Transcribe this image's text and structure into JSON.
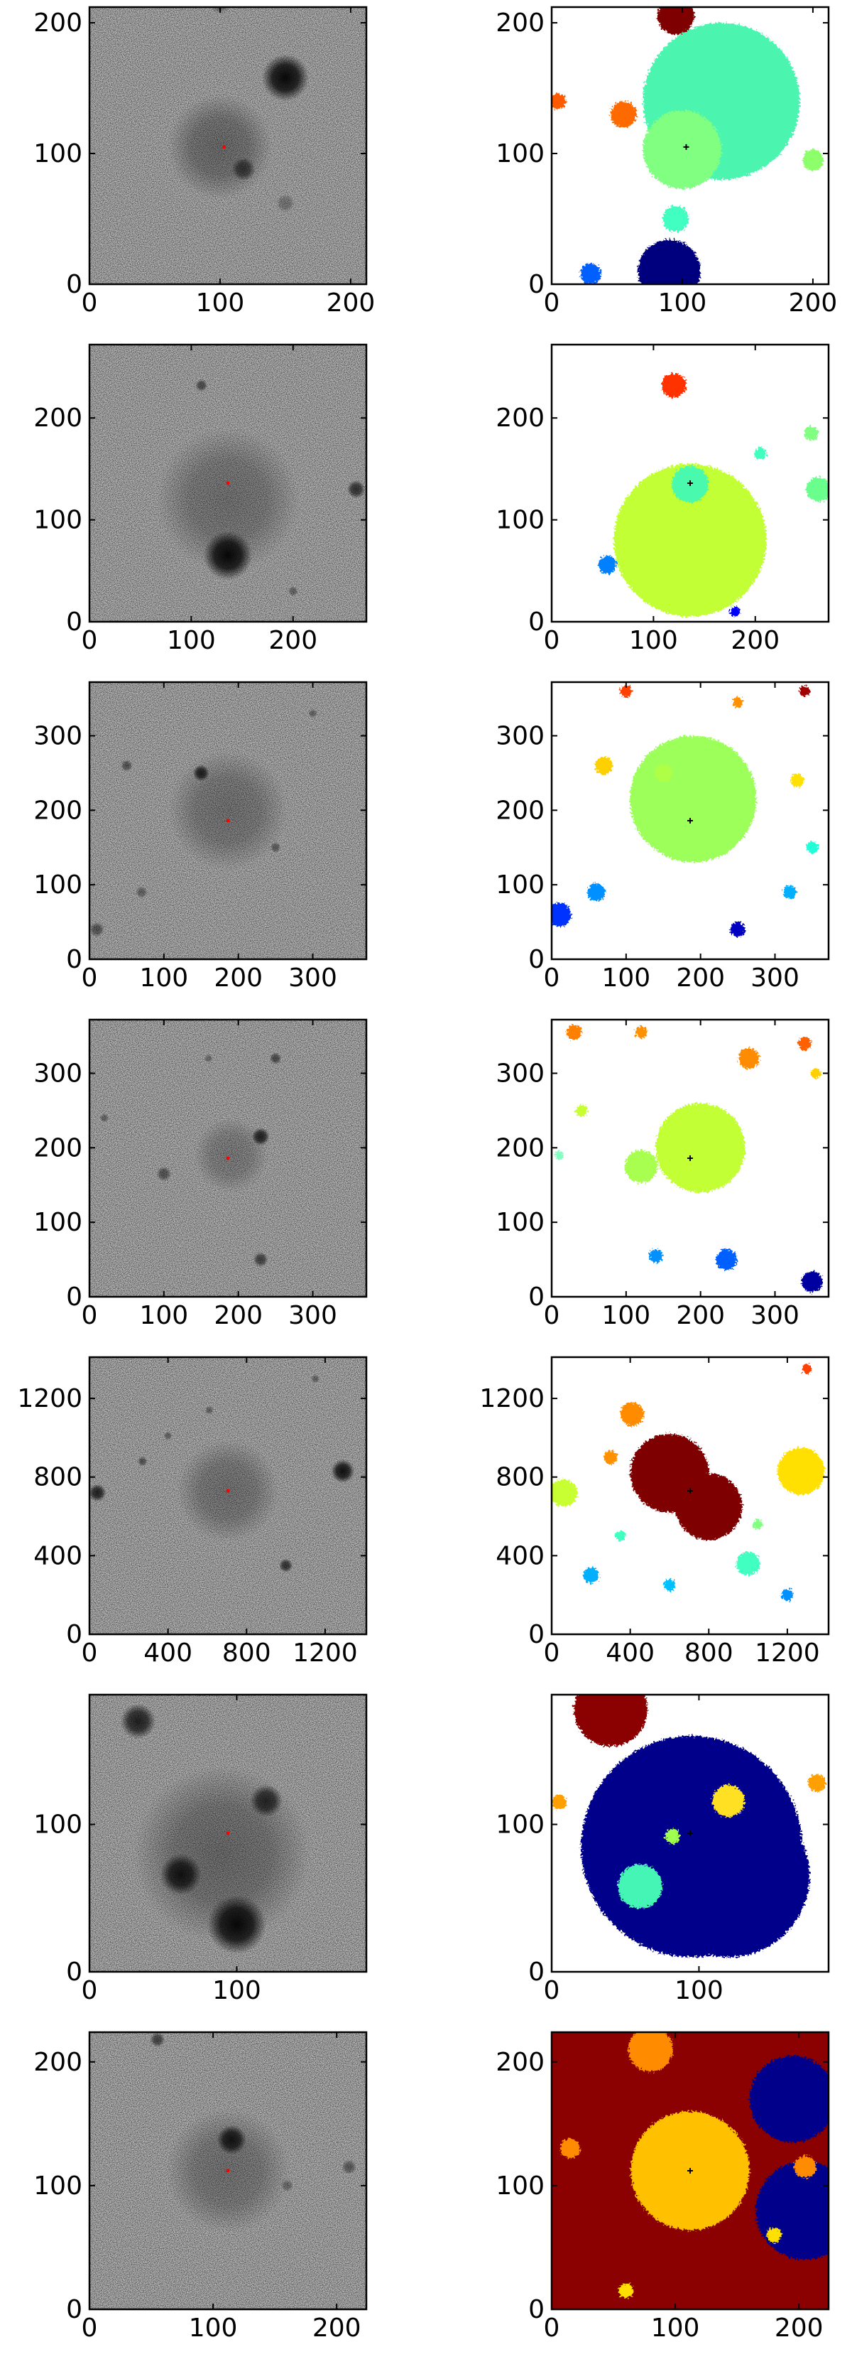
{
  "chart_data": [
    {
      "type": "image-grid-row",
      "xlim": [
        0,
        212
      ],
      "ylim": [
        0,
        212
      ],
      "xticks": [
        0,
        100,
        200
      ],
      "yticks": [
        0,
        100,
        200
      ],
      "center": [
        103,
        105
      ],
      "image": {
        "blobs": [
          {
            "x": 150,
            "y": 158,
            "r": 18,
            "strength": 0.95
          },
          {
            "x": 118,
            "y": 88,
            "r": 9,
            "strength": 0.6
          },
          {
            "x": 100,
            "y": 105,
            "r": 40,
            "strength": 0.35
          },
          {
            "x": 100,
            "y": 215,
            "r": 8,
            "strength": 0.4
          },
          {
            "x": 150,
            "y": 62,
            "r": 7,
            "strength": 0.3
          }
        ]
      },
      "segmentation": {
        "background": "#ffffff",
        "blobs": [
          {
            "x": 130,
            "y": 140,
            "r": 60,
            "color": "#4cf5b0"
          },
          {
            "x": 100,
            "y": 103,
            "r": 30,
            "color": "#80ff80"
          },
          {
            "x": 90,
            "y": 10,
            "r": 24,
            "color": "#00007f"
          },
          {
            "x": 95,
            "y": 205,
            "r": 14,
            "color": "#7f0000"
          },
          {
            "x": 55,
            "y": 130,
            "r": 10,
            "color": "#ff6a00"
          },
          {
            "x": 200,
            "y": 95,
            "r": 8,
            "color": "#8cff6b"
          },
          {
            "x": 5,
            "y": 140,
            "r": 6,
            "color": "#ff5a00"
          },
          {
            "x": 30,
            "y": 8,
            "r": 8,
            "color": "#0060ff"
          },
          {
            "x": 95,
            "y": 50,
            "r": 10,
            "color": "#40ffc0"
          }
        ]
      }
    },
    {
      "type": "image-grid-row",
      "xlim": [
        0,
        272
      ],
      "ylim": [
        0,
        272
      ],
      "xticks": [
        0,
        100,
        200
      ],
      "yticks": [
        0,
        100,
        200
      ],
      "center": [
        136,
        136
      ],
      "image": {
        "blobs": [
          {
            "x": 136,
            "y": 65,
            "r": 24,
            "strength": 0.95
          },
          {
            "x": 136,
            "y": 120,
            "r": 70,
            "strength": 0.3
          },
          {
            "x": 262,
            "y": 130,
            "r": 9,
            "strength": 0.7
          },
          {
            "x": 110,
            "y": 232,
            "r": 6,
            "strength": 0.55
          },
          {
            "x": 200,
            "y": 30,
            "r": 5,
            "strength": 0.4
          }
        ]
      },
      "segmentation": {
        "background": "#ffffff",
        "blobs": [
          {
            "x": 136,
            "y": 80,
            "r": 75,
            "color": "#c2ff34"
          },
          {
            "x": 136,
            "y": 135,
            "r": 18,
            "color": "#49f9ad"
          },
          {
            "x": 120,
            "y": 232,
            "r": 12,
            "color": "#ff3000"
          },
          {
            "x": 262,
            "y": 130,
            "r": 12,
            "color": "#6bff8c"
          },
          {
            "x": 55,
            "y": 56,
            "r": 9,
            "color": "#0080ff"
          },
          {
            "x": 255,
            "y": 185,
            "r": 7,
            "color": "#80ff80"
          },
          {
            "x": 205,
            "y": 165,
            "r": 6,
            "color": "#40ffc0"
          },
          {
            "x": 180,
            "y": 10,
            "r": 5,
            "color": "#0000ff"
          }
        ]
      }
    },
    {
      "type": "image-grid-row",
      "xlim": [
        0,
        372
      ],
      "ylim": [
        0,
        372
      ],
      "xticks": [
        0,
        100,
        200,
        300
      ],
      "yticks": [
        0,
        100,
        200,
        300
      ],
      "center": [
        186,
        186
      ],
      "image": {
        "blobs": [
          {
            "x": 150,
            "y": 250,
            "r": 11,
            "strength": 0.8
          },
          {
            "x": 186,
            "y": 200,
            "r": 80,
            "strength": 0.3
          },
          {
            "x": 50,
            "y": 260,
            "r": 8,
            "strength": 0.5
          },
          {
            "x": 250,
            "y": 150,
            "r": 7,
            "strength": 0.45
          },
          {
            "x": 70,
            "y": 90,
            "r": 8,
            "strength": 0.4
          },
          {
            "x": 300,
            "y": 330,
            "r": 6,
            "strength": 0.4
          },
          {
            "x": 10,
            "y": 40,
            "r": 10,
            "strength": 0.5
          }
        ]
      },
      "segmentation": {
        "background": "#ffffff",
        "blobs": [
          {
            "x": 190,
            "y": 215,
            "r": 85,
            "color": "#9cff5a"
          },
          {
            "x": 150,
            "y": 250,
            "r": 12,
            "color": "#b0ff46"
          },
          {
            "x": 70,
            "y": 260,
            "r": 12,
            "color": "#ffd000"
          },
          {
            "x": 60,
            "y": 90,
            "r": 12,
            "color": "#0090ff"
          },
          {
            "x": 10,
            "y": 60,
            "r": 16,
            "color": "#0030ff"
          },
          {
            "x": 250,
            "y": 40,
            "r": 10,
            "color": "#0000c0"
          },
          {
            "x": 320,
            "y": 90,
            "r": 9,
            "color": "#00b0ff"
          },
          {
            "x": 350,
            "y": 150,
            "r": 8,
            "color": "#20ffd8"
          },
          {
            "x": 330,
            "y": 240,
            "r": 9,
            "color": "#ffe000"
          },
          {
            "x": 100,
            "y": 360,
            "r": 8,
            "color": "#ff4000"
          },
          {
            "x": 340,
            "y": 360,
            "r": 7,
            "color": "#a00000"
          },
          {
            "x": 250,
            "y": 345,
            "r": 7,
            "color": "#ff9000"
          }
        ]
      }
    },
    {
      "type": "image-grid-row",
      "xlim": [
        0,
        372
      ],
      "ylim": [
        0,
        372
      ],
      "xticks": [
        0,
        100,
        200,
        300
      ],
      "yticks": [
        0,
        100,
        200,
        300
      ],
      "center": [
        186,
        186
      ],
      "image": {
        "blobs": [
          {
            "x": 230,
            "y": 215,
            "r": 12,
            "strength": 0.8
          },
          {
            "x": 190,
            "y": 190,
            "r": 50,
            "strength": 0.25
          },
          {
            "x": 100,
            "y": 165,
            "r": 10,
            "strength": 0.5
          },
          {
            "x": 230,
            "y": 50,
            "r": 10,
            "strength": 0.6
          },
          {
            "x": 250,
            "y": 320,
            "r": 8,
            "strength": 0.55
          },
          {
            "x": 160,
            "y": 320,
            "r": 5,
            "strength": 0.35
          },
          {
            "x": 20,
            "y": 240,
            "r": 6,
            "strength": 0.4
          }
        ]
      },
      "segmentation": {
        "background": "#ffffff",
        "blobs": [
          {
            "x": 200,
            "y": 200,
            "r": 60,
            "color": "#c2ff34"
          },
          {
            "x": 120,
            "y": 175,
            "r": 22,
            "color": "#a8ff50"
          },
          {
            "x": 235,
            "y": 50,
            "r": 14,
            "color": "#0060ff"
          },
          {
            "x": 140,
            "y": 55,
            "r": 9,
            "color": "#0090ff"
          },
          {
            "x": 350,
            "y": 20,
            "r": 14,
            "color": "#0000a0"
          },
          {
            "x": 265,
            "y": 320,
            "r": 14,
            "color": "#ff8c00"
          },
          {
            "x": 30,
            "y": 355,
            "r": 10,
            "color": "#ff8000"
          },
          {
            "x": 120,
            "y": 355,
            "r": 8,
            "color": "#ff9000"
          },
          {
            "x": 340,
            "y": 340,
            "r": 9,
            "color": "#ff6000"
          },
          {
            "x": 40,
            "y": 250,
            "r": 8,
            "color": "#c8ff30"
          },
          {
            "x": 355,
            "y": 300,
            "r": 7,
            "color": "#ffd000"
          },
          {
            "x": 10,
            "y": 190,
            "r": 6,
            "color": "#80ffc0"
          }
        ]
      }
    },
    {
      "type": "image-grid-row",
      "xlim": [
        0,
        1410
      ],
      "ylim": [
        0,
        1410
      ],
      "xticks": [
        0,
        400,
        800,
        1200
      ],
      "yticks": [
        0,
        400,
        800,
        1200
      ],
      "center": [
        705,
        730
      ],
      "image": {
        "blobs": [
          {
            "x": 1290,
            "y": 830,
            "r": 60,
            "strength": 0.9
          },
          {
            "x": 40,
            "y": 720,
            "r": 45,
            "strength": 0.8
          },
          {
            "x": 705,
            "y": 730,
            "r": 260,
            "strength": 0.3
          },
          {
            "x": 1000,
            "y": 350,
            "r": 35,
            "strength": 0.7
          },
          {
            "x": 270,
            "y": 880,
            "r": 25,
            "strength": 0.5
          },
          {
            "x": 610,
            "y": 1140,
            "r": 22,
            "strength": 0.4
          },
          {
            "x": 400,
            "y": 1010,
            "r": 20,
            "strength": 0.4
          },
          {
            "x": 1150,
            "y": 1300,
            "r": 18,
            "strength": 0.4
          }
        ]
      },
      "segmentation": {
        "background": "#ffffff",
        "blobs": [
          {
            "x": 600,
            "y": 820,
            "r": 200,
            "color": "#7f0000"
          },
          {
            "x": 800,
            "y": 650,
            "r": 170,
            "color": "#7f0000"
          },
          {
            "x": 410,
            "y": 1120,
            "r": 60,
            "color": "#ff8c00"
          },
          {
            "x": 1270,
            "y": 830,
            "r": 120,
            "color": "#ffe000"
          },
          {
            "x": 60,
            "y": 720,
            "r": 70,
            "color": "#c8ff30"
          },
          {
            "x": 1000,
            "y": 360,
            "r": 60,
            "color": "#40ffc0"
          },
          {
            "x": 300,
            "y": 900,
            "r": 35,
            "color": "#ff9000"
          },
          {
            "x": 200,
            "y": 300,
            "r": 40,
            "color": "#00b0ff"
          },
          {
            "x": 600,
            "y": 250,
            "r": 30,
            "color": "#00c0ff"
          },
          {
            "x": 1200,
            "y": 200,
            "r": 30,
            "color": "#0090ff"
          },
          {
            "x": 350,
            "y": 500,
            "r": 26,
            "color": "#40ffc0"
          },
          {
            "x": 1050,
            "y": 560,
            "r": 24,
            "color": "#80ff80"
          },
          {
            "x": 1300,
            "y": 1350,
            "r": 25,
            "color": "#ff4000"
          }
        ]
      }
    },
    {
      "type": "image-grid-row",
      "xlim": [
        0,
        188
      ],
      "ylim": [
        0,
        188
      ],
      "xticks": [
        0,
        100
      ],
      "yticks": [
        0,
        100
      ],
      "center": [
        94,
        94
      ],
      "image": {
        "blobs": [
          {
            "x": 100,
            "y": 32,
            "r": 20,
            "strength": 0.95
          },
          {
            "x": 62,
            "y": 66,
            "r": 14,
            "strength": 0.85
          },
          {
            "x": 120,
            "y": 116,
            "r": 11,
            "strength": 0.75
          },
          {
            "x": 33,
            "y": 170,
            "r": 12,
            "strength": 0.8
          },
          {
            "x": 90,
            "y": 80,
            "r": 60,
            "strength": 0.35
          }
        ]
      },
      "segmentation": {
        "background": "#ffffff",
        "blobs": [
          {
            "x": 95,
            "y": 85,
            "r": 75,
            "color": "#00008b"
          },
          {
            "x": 120,
            "y": 65,
            "r": 55,
            "color": "#00008b"
          },
          {
            "x": 40,
            "y": 178,
            "r": 25,
            "color": "#8b0000"
          },
          {
            "x": 60,
            "y": 58,
            "r": 15,
            "color": "#45f5b5"
          },
          {
            "x": 120,
            "y": 116,
            "r": 11,
            "color": "#ffe020"
          },
          {
            "x": 82,
            "y": 92,
            "r": 5,
            "color": "#a0ff50"
          },
          {
            "x": 5,
            "y": 115,
            "r": 5,
            "color": "#ffa000"
          },
          {
            "x": 180,
            "y": 128,
            "r": 6,
            "color": "#ffa000"
          }
        ]
      }
    },
    {
      "type": "image-grid-row",
      "xlim": [
        0,
        224
      ],
      "ylim": [
        0,
        224
      ],
      "xticks": [
        0,
        100,
        200
      ],
      "yticks": [
        0,
        100,
        200
      ],
      "center": [
        112,
        112
      ],
      "image": {
        "blobs": [
          {
            "x": 115,
            "y": 137,
            "r": 12,
            "strength": 0.85
          },
          {
            "x": 112,
            "y": 112,
            "r": 50,
            "strength": 0.3
          },
          {
            "x": 55,
            "y": 218,
            "r": 6,
            "strength": 0.6
          },
          {
            "x": 210,
            "y": 115,
            "r": 6,
            "strength": 0.45
          },
          {
            "x": 160,
            "y": 100,
            "r": 5,
            "strength": 0.35
          }
        ]
      },
      "segmentation": {
        "background": "#8b0000",
        "blobs": [
          {
            "x": 205,
            "y": 80,
            "r": 40,
            "color": "#00008b"
          },
          {
            "x": 195,
            "y": 170,
            "r": 35,
            "color": "#00008b"
          },
          {
            "x": 112,
            "y": 112,
            "r": 48,
            "color": "#ffc000"
          },
          {
            "x": 80,
            "y": 210,
            "r": 18,
            "color": "#ff8c00"
          },
          {
            "x": 15,
            "y": 130,
            "r": 8,
            "color": "#ff8c00"
          },
          {
            "x": 205,
            "y": 115,
            "r": 9,
            "color": "#ff8c00"
          },
          {
            "x": 180,
            "y": 60,
            "r": 6,
            "color": "#ffe000"
          },
          {
            "x": 60,
            "y": 15,
            "r": 6,
            "color": "#ffe000"
          }
        ]
      }
    }
  ]
}
